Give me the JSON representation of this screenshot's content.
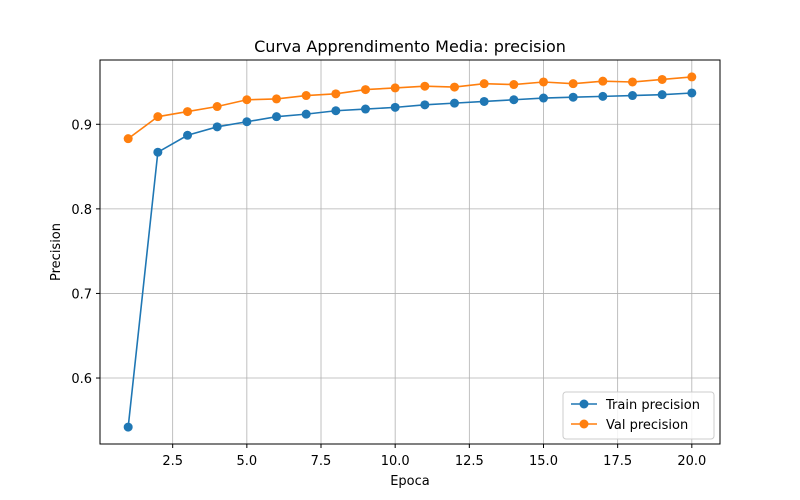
{
  "chart_data": {
    "type": "line",
    "title": "Curva Apprendimento Media: precision",
    "xlabel": "Epoca",
    "ylabel": "Precision",
    "xlim": [
      0.05,
      20.95
    ],
    "ylim": [
      0.522,
      0.976
    ],
    "xticks": [
      2.5,
      5.0,
      7.5,
      10.0,
      12.5,
      15.0,
      17.5,
      20.0
    ],
    "xtick_labels": [
      "2.5",
      "5.0",
      "7.5",
      "10.0",
      "12.5",
      "15.0",
      "17.5",
      "20.0"
    ],
    "yticks": [
      0.6,
      0.7,
      0.8,
      0.9
    ],
    "ytick_labels": [
      "0.6",
      "0.7",
      "0.8",
      "0.9"
    ],
    "grid": true,
    "legend_position": "lower-right",
    "x": [
      1,
      2,
      3,
      4,
      5,
      6,
      7,
      8,
      9,
      10,
      11,
      12,
      13,
      14,
      15,
      16,
      17,
      18,
      19,
      20
    ],
    "series": [
      {
        "name": "Train precision",
        "color": "#1f77b4",
        "marker": "circle",
        "values": [
          0.542,
          0.867,
          0.887,
          0.897,
          0.903,
          0.909,
          0.912,
          0.916,
          0.918,
          0.92,
          0.923,
          0.925,
          0.927,
          0.929,
          0.931,
          0.932,
          0.933,
          0.934,
          0.935,
          0.937
        ]
      },
      {
        "name": "Val precision",
        "color": "#ff7f0e",
        "marker": "circle",
        "values": [
          0.883,
          0.909,
          0.915,
          0.921,
          0.929,
          0.93,
          0.934,
          0.936,
          0.941,
          0.943,
          0.945,
          0.944,
          0.948,
          0.947,
          0.95,
          0.948,
          0.951,
          0.95,
          0.953,
          0.956
        ]
      }
    ]
  }
}
